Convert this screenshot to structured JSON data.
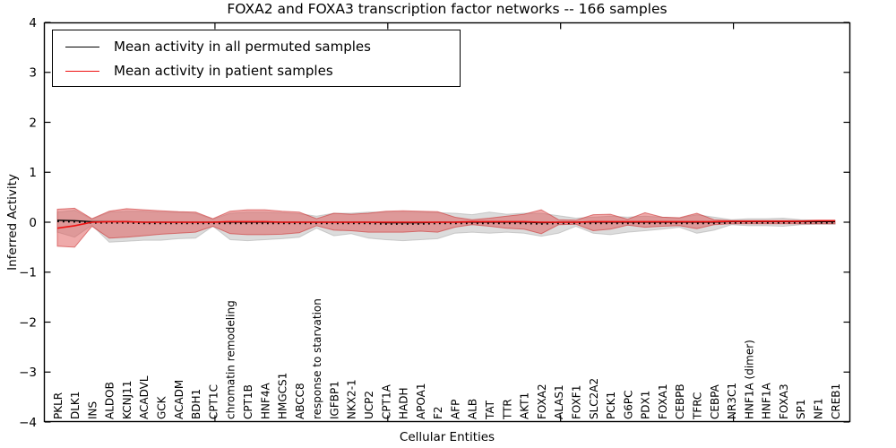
{
  "title": "FOXA2 and FOXA3 transcription factor networks -- 166 samples",
  "legend": {
    "items": [
      {
        "label": "Mean activity in all permuted samples",
        "color": "#000000"
      },
      {
        "label": "Mean activity in patient samples",
        "color": "#ee1111"
      }
    ]
  },
  "axes": {
    "xlabel": "Cellular Entities",
    "ylabel": "Inferred Activity",
    "ytick_values": [
      4,
      3,
      2,
      1,
      0,
      -1,
      -2,
      -3,
      -4
    ],
    "ytick_labels": [
      "4",
      "3",
      "2",
      "1",
      "0",
      "−1",
      "−2",
      "−3",
      "−4"
    ]
  },
  "chart_data": {
    "type": "line",
    "title": "FOXA2 and FOXA3 transcription factor networks -- 166 samples",
    "xlabel": "Cellular Entities",
    "ylabel": "Inferred Activity",
    "ylim": [
      -4,
      4
    ],
    "grid": false,
    "legend_position": "upper left",
    "x_major_tick_indices": [
      9.12,
      19.12,
      29.12,
      39.12
    ],
    "categories": [
      "PKLR",
      "DLK1",
      "INS",
      "ALDOB",
      "KCNJ11",
      "ACADVL",
      "GCK",
      "ACADM",
      "BDH1",
      "CPT1C",
      "chromatin remodeling",
      "CPT1B",
      "HNF4A",
      "HMGCS1",
      "ABCC8",
      "response to starvation",
      "IGFBP1",
      "NKX2-1",
      "UCP2",
      "CPT1A",
      "HADH",
      "APOA1",
      "F2",
      "AFP",
      "ALB",
      "TAT",
      "TTR",
      "AKT1",
      "FOXA2",
      "ALAS1",
      "FOXF1",
      "SLC2A2",
      "PCK1",
      "G6PC",
      "PDX1",
      "FOXA1",
      "CEBPB",
      "TFRC",
      "CEBPA",
      "NR3C1",
      "HNF1A (dimer)",
      "HNF1A",
      "FOXA3",
      "SP1",
      "NF1",
      "CREB1"
    ],
    "series": [
      {
        "name": "Mean activity in all permuted samples",
        "kind": "line",
        "color": "#000000",
        "values": [
          0.04,
          0.03,
          0.01,
          0.01,
          0.01,
          0.0,
          0.0,
          0.0,
          0.0,
          0.0,
          0.0,
          0.0,
          0.0,
          0.0,
          0.0,
          0.0,
          0.0,
          0.0,
          0.0,
          -0.01,
          -0.01,
          -0.01,
          0.0,
          0.0,
          0.0,
          0.0,
          0.0,
          0.0,
          -0.01,
          0.0,
          0.0,
          0.0,
          0.0,
          0.0,
          0.0,
          0.0,
          0.0,
          0.0,
          0.0,
          0.01,
          0.01,
          0.01,
          0.01,
          0.01,
          0.01,
          0.01
        ]
      },
      {
        "name": "Mean activity in patient samples",
        "kind": "line",
        "color": "#ee1111",
        "values": [
          -0.12,
          -0.07,
          0.0,
          0.01,
          0.01,
          0.0,
          0.0,
          0.0,
          0.0,
          0.0,
          0.01,
          0.01,
          0.01,
          0.0,
          0.0,
          0.0,
          0.0,
          0.0,
          0.0,
          0.0,
          0.0,
          0.0,
          0.0,
          0.0,
          0.01,
          0.01,
          0.01,
          0.01,
          0.0,
          0.0,
          0.0,
          0.01,
          0.01,
          0.01,
          0.01,
          0.01,
          0.01,
          0.01,
          0.01,
          0.02,
          0.02,
          0.02,
          0.02,
          0.02,
          0.03,
          0.03
        ]
      },
      {
        "name": "Permuted samples activity range",
        "kind": "band",
        "fill": "#a8a8a8",
        "fill_opacity": 0.4,
        "edge": "#ababab",
        "upper": [
          0.2,
          0.24,
          0.06,
          0.2,
          0.22,
          0.22,
          0.2,
          0.2,
          0.18,
          0.06,
          0.18,
          0.2,
          0.2,
          0.19,
          0.17,
          0.12,
          0.18,
          0.18,
          0.2,
          0.2,
          0.2,
          0.2,
          0.19,
          0.18,
          0.15,
          0.2,
          0.16,
          0.18,
          0.18,
          0.13,
          0.08,
          0.1,
          0.12,
          0.1,
          0.12,
          0.1,
          0.08,
          0.15,
          0.1,
          0.05,
          0.07,
          0.07,
          0.08,
          0.05,
          0.04,
          0.04
        ],
        "lower": [
          -0.2,
          -0.3,
          -0.06,
          -0.4,
          -0.38,
          -0.36,
          -0.36,
          -0.33,
          -0.32,
          -0.08,
          -0.35,
          -0.37,
          -0.35,
          -0.33,
          -0.3,
          -0.12,
          -0.27,
          -0.23,
          -0.32,
          -0.35,
          -0.37,
          -0.35,
          -0.33,
          -0.22,
          -0.2,
          -0.22,
          -0.2,
          -0.22,
          -0.28,
          -0.22,
          -0.08,
          -0.22,
          -0.25,
          -0.2,
          -0.17,
          -0.14,
          -0.1,
          -0.22,
          -0.16,
          -0.05,
          -0.07,
          -0.07,
          -0.08,
          -0.05,
          -0.04,
          -0.04
        ]
      },
      {
        "name": "Patient samples activity range",
        "kind": "band",
        "fill": "#e05555",
        "fill_opacity": 0.5,
        "edge": "#cc3434",
        "upper": [
          0.26,
          0.28,
          0.07,
          0.22,
          0.27,
          0.25,
          0.23,
          0.21,
          0.2,
          0.07,
          0.22,
          0.25,
          0.25,
          0.22,
          0.2,
          0.07,
          0.18,
          0.16,
          0.18,
          0.22,
          0.23,
          0.22,
          0.21,
          0.1,
          0.05,
          0.08,
          0.12,
          0.16,
          0.25,
          0.05,
          0.04,
          0.15,
          0.16,
          0.06,
          0.19,
          0.1,
          0.09,
          0.18,
          0.05,
          0.03,
          0.03,
          0.03,
          0.03,
          0.03,
          0.03,
          0.03
        ],
        "lower": [
          -0.48,
          -0.5,
          -0.08,
          -0.32,
          -0.3,
          -0.27,
          -0.24,
          -0.22,
          -0.2,
          -0.08,
          -0.23,
          -0.25,
          -0.25,
          -0.24,
          -0.21,
          -0.07,
          -0.16,
          -0.17,
          -0.2,
          -0.2,
          -0.2,
          -0.18,
          -0.2,
          -0.1,
          -0.05,
          -0.08,
          -0.12,
          -0.14,
          -0.23,
          -0.05,
          -0.04,
          -0.17,
          -0.14,
          -0.06,
          -0.1,
          -0.08,
          -0.07,
          -0.13,
          -0.05,
          -0.03,
          -0.03,
          -0.03,
          -0.03,
          -0.03,
          -0.03,
          -0.03
        ]
      }
    ]
  }
}
